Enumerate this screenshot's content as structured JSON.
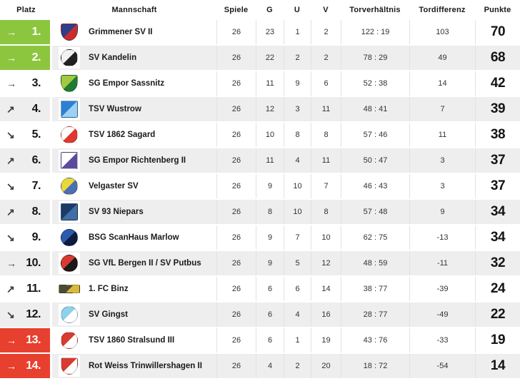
{
  "table": {
    "columns": [
      {
        "key": "platz",
        "label": "Platz"
      },
      {
        "key": "mannschaft",
        "label": "Mannschaft"
      },
      {
        "key": "spiele",
        "label": "Spiele"
      },
      {
        "key": "g",
        "label": "G"
      },
      {
        "key": "u",
        "label": "U"
      },
      {
        "key": "v",
        "label": "V"
      },
      {
        "key": "torverhaeltnis",
        "label": "Torverhältnis"
      },
      {
        "key": "tordifferenz",
        "label": "Tordifferenz"
      },
      {
        "key": "punkte",
        "label": "Punkte"
      }
    ],
    "rows": [
      {
        "platz": "1.",
        "trend": "right",
        "zone": "promotion",
        "team": "Grimmener SV II",
        "logo_shape": "shield",
        "logo_colors": [
          "#2c3e8c",
          "#cc2b2b"
        ],
        "spiele": "26",
        "g": "23",
        "u": "1",
        "v": "2",
        "torverhaeltnis": "122 : 19",
        "tordifferenz": "103",
        "punkte": "70"
      },
      {
        "platz": "2.",
        "trend": "right",
        "zone": "promotion",
        "team": "SV Kandelin",
        "logo_shape": "circle",
        "logo_colors": [
          "#f2f2f2",
          "#222222"
        ],
        "spiele": "26",
        "g": "22",
        "u": "2",
        "v": "2",
        "torverhaeltnis": "78 : 29",
        "tordifferenz": "49",
        "punkte": "68"
      },
      {
        "platz": "3.",
        "trend": "right",
        "zone": "none",
        "team": "SG Empor Sassnitz",
        "logo_shape": "shield",
        "logo_colors": [
          "#a4c93f",
          "#1f7a33"
        ],
        "spiele": "26",
        "g": "11",
        "u": "9",
        "v": "6",
        "torverhaeltnis": "52 : 38",
        "tordifferenz": "14",
        "punkte": "42"
      },
      {
        "platz": "4.",
        "trend": "up",
        "zone": "none",
        "team": "TSV Wustrow",
        "logo_shape": "square",
        "logo_colors": [
          "#2f7fd0",
          "#9fd1f2"
        ],
        "spiele": "26",
        "g": "12",
        "u": "3",
        "v": "11",
        "torverhaeltnis": "48 : 41",
        "tordifferenz": "7",
        "punkte": "39"
      },
      {
        "platz": "5.",
        "trend": "down",
        "zone": "none",
        "team": "TSV 1862 Sagard",
        "logo_shape": "circle",
        "logo_colors": [
          "#ffffff",
          "#e0372f"
        ],
        "spiele": "26",
        "g": "10",
        "u": "8",
        "v": "8",
        "torverhaeltnis": "57 : 46",
        "tordifferenz": "11",
        "punkte": "38"
      },
      {
        "platz": "6.",
        "trend": "up",
        "zone": "none",
        "team": "SG Empor Richtenberg II",
        "logo_shape": "square",
        "logo_colors": [
          "#ffffff",
          "#5c4a9e"
        ],
        "spiele": "26",
        "g": "11",
        "u": "4",
        "v": "11",
        "torverhaeltnis": "50 : 47",
        "tordifferenz": "3",
        "punkte": "37"
      },
      {
        "platz": "7.",
        "trend": "down",
        "zone": "none",
        "team": "Velgaster SV",
        "logo_shape": "circle",
        "logo_colors": [
          "#e8d83a",
          "#4a6fb5"
        ],
        "spiele": "26",
        "g": "9",
        "u": "10",
        "v": "7",
        "torverhaeltnis": "46 : 43",
        "tordifferenz": "3",
        "punkte": "37"
      },
      {
        "platz": "8.",
        "trend": "up",
        "zone": "none",
        "team": "SV 93 Niepars",
        "logo_shape": "square",
        "logo_colors": [
          "#1b3a66",
          "#3f6fa8"
        ],
        "spiele": "26",
        "g": "8",
        "u": "10",
        "v": "8",
        "torverhaeltnis": "57 : 48",
        "tordifferenz": "9",
        "punkte": "34"
      },
      {
        "platz": "9.",
        "trend": "down",
        "zone": "none",
        "team": "BSG ScanHaus Marlow",
        "logo_shape": "circle",
        "logo_colors": [
          "#2a5bb0",
          "#0f1b3d"
        ],
        "spiele": "26",
        "g": "9",
        "u": "7",
        "v": "10",
        "torverhaeltnis": "62 : 75",
        "tordifferenz": "-13",
        "punkte": "34"
      },
      {
        "platz": "10.",
        "trend": "right",
        "zone": "none",
        "team": "SG VfL Bergen II / SV Putbus",
        "logo_shape": "circle",
        "logo_colors": [
          "#d93a31",
          "#1a1a1a"
        ],
        "spiele": "26",
        "g": "9",
        "u": "5",
        "v": "12",
        "torverhaeltnis": "48 : 59",
        "tordifferenz": "-11",
        "punkte": "32"
      },
      {
        "platz": "11.",
        "trend": "up",
        "zone": "none",
        "team": "1. FC Binz",
        "logo_shape": "wide",
        "logo_colors": [
          "#4a4a3a",
          "#d9b93a"
        ],
        "spiele": "26",
        "g": "6",
        "u": "6",
        "v": "14",
        "torverhaeltnis": "38 : 77",
        "tordifferenz": "-39",
        "punkte": "24"
      },
      {
        "platz": "12.",
        "trend": "down",
        "zone": "none",
        "team": "SV Gingst",
        "logo_shape": "circle",
        "logo_colors": [
          "#8fd0ea",
          "#ffffff"
        ],
        "spiele": "26",
        "g": "6",
        "u": "4",
        "v": "16",
        "torverhaeltnis": "28 : 77",
        "tordifferenz": "-49",
        "punkte": "22"
      },
      {
        "platz": "13.",
        "trend": "right",
        "zone": "relegation",
        "team": "TSV 1860 Stralsund III",
        "logo_shape": "circle",
        "logo_colors": [
          "#d93a31",
          "#ffffff"
        ],
        "spiele": "26",
        "g": "6",
        "u": "1",
        "v": "19",
        "torverhaeltnis": "43 : 76",
        "tordifferenz": "-33",
        "punkte": "19"
      },
      {
        "platz": "14.",
        "trend": "right",
        "zone": "relegation",
        "team": "Rot Weiss Trinwillershagen II",
        "logo_shape": "shield",
        "logo_colors": [
          "#d93a31",
          "#ffffff"
        ],
        "spiele": "26",
        "g": "4",
        "u": "2",
        "v": "20",
        "torverhaeltnis": "18 : 72",
        "tordifferenz": "-54",
        "punkte": "14"
      }
    ]
  },
  "icons": {
    "right": "→",
    "up": "↗",
    "down": "↘"
  },
  "colors": {
    "promotion": "#8cc63f",
    "relegation": "#e8402f",
    "row": "#ffffff",
    "row_alt": "#eeeeee",
    "separator": "#e2e2e2",
    "text": "#1a1a1a"
  }
}
